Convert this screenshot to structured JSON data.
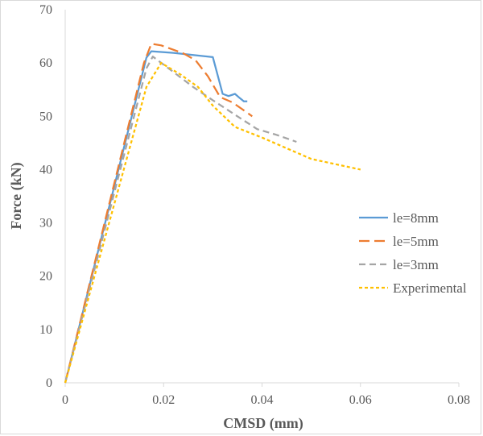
{
  "chart_data": {
    "type": "line",
    "title": "",
    "xlabel": "CMSD (mm)",
    "ylabel": "Force (kN)",
    "xlim": [
      0,
      0.08
    ],
    "ylim": [
      0,
      70
    ],
    "xticks": [
      0,
      0.02,
      0.04,
      0.06,
      0.08
    ],
    "xtick_labels": [
      "0",
      "0.02",
      "0.04",
      "0.06",
      "0.08"
    ],
    "yticks": [
      0,
      10,
      20,
      30,
      40,
      50,
      60,
      70
    ],
    "ytick_labels": [
      "0",
      "10",
      "20",
      "30",
      "40",
      "50",
      "60",
      "70"
    ],
    "grid": false,
    "legend_position": "right",
    "series": [
      {
        "name": "le=8mm",
        "color": "#5b9bd5",
        "dash": "solid",
        "points": [
          [
            0,
            0
          ],
          [
            0.0165,
            61
          ],
          [
            0.0175,
            62.2
          ],
          [
            0.022,
            61.9
          ],
          [
            0.026,
            61.5
          ],
          [
            0.03,
            61.1
          ],
          [
            0.032,
            54.2
          ],
          [
            0.0332,
            53.8
          ],
          [
            0.0345,
            54.2
          ],
          [
            0.0355,
            53.4
          ],
          [
            0.0363,
            52.8
          ],
          [
            0.037,
            52.8
          ]
        ]
      },
      {
        "name": "le=5mm",
        "color": "#ed7d31",
        "dash": "longdash",
        "points": [
          [
            0,
            0
          ],
          [
            0.016,
            60
          ],
          [
            0.0175,
            63.6
          ],
          [
            0.0195,
            63.3
          ],
          [
            0.024,
            61.8
          ],
          [
            0.0265,
            60.5
          ],
          [
            0.029,
            57.5
          ],
          [
            0.0315,
            53.6
          ],
          [
            0.034,
            52.6
          ],
          [
            0.0365,
            51
          ],
          [
            0.038,
            50
          ]
        ]
      },
      {
        "name": "le=3mm",
        "color": "#a5a5a5",
        "dash": "dash",
        "points": [
          [
            0,
            0
          ],
          [
            0.0165,
            59
          ],
          [
            0.0178,
            61.2
          ],
          [
            0.021,
            59
          ],
          [
            0.026,
            55.5
          ],
          [
            0.03,
            53
          ],
          [
            0.035,
            50
          ],
          [
            0.039,
            47.6
          ],
          [
            0.043,
            46.5
          ],
          [
            0.047,
            45.2
          ]
        ]
      },
      {
        "name": "Experimental",
        "color": "#ffc000",
        "dash": "shortdash",
        "points": [
          [
            0,
            0
          ],
          [
            0.0165,
            55.5
          ],
          [
            0.0195,
            60
          ],
          [
            0.0235,
            57.8
          ],
          [
            0.027,
            55.5
          ],
          [
            0.03,
            52
          ],
          [
            0.0345,
            48
          ],
          [
            0.04,
            46
          ],
          [
            0.045,
            44
          ],
          [
            0.05,
            42
          ],
          [
            0.055,
            41
          ],
          [
            0.06,
            40
          ]
        ]
      }
    ]
  }
}
